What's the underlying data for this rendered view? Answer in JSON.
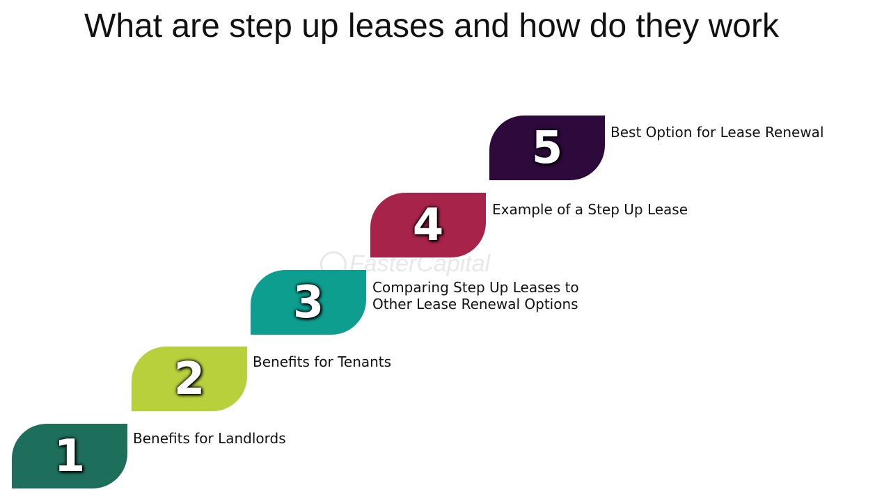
{
  "title": "What are step up leases and how do they work",
  "watermark": "FasterCapital",
  "steps": [
    {
      "number": "1",
      "label": "Benefits for Landlords",
      "color": "#1e6e5c"
    },
    {
      "number": "2",
      "label": "Benefits for Tenants",
      "color": "#b9d03d"
    },
    {
      "number": "3",
      "label": "Comparing Step Up Leases to Other Lease Renewal Options",
      "color": "#0d9e90"
    },
    {
      "number": "4",
      "label": "Example of a Step Up Lease",
      "color": "#a8234a"
    },
    {
      "number": "5",
      "label": "Best Option for Lease Renewal",
      "color": "#2e0a3c"
    }
  ]
}
